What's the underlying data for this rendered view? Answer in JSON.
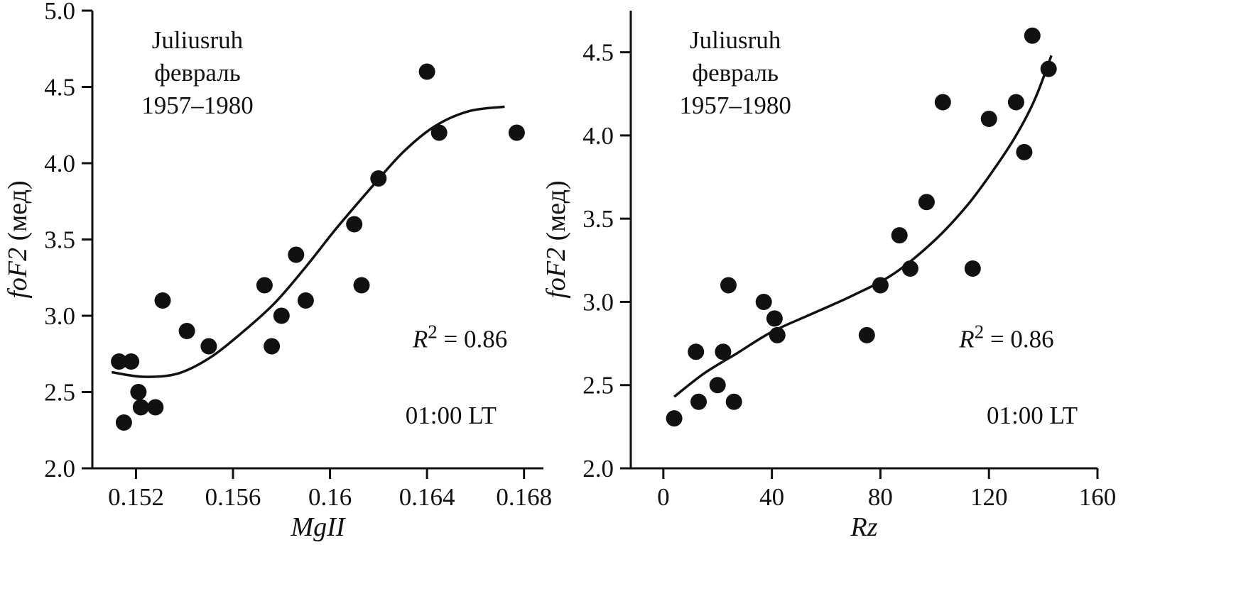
{
  "figure": {
    "background": "#ffffff",
    "ink_color": "#111111"
  },
  "chart_data": [
    {
      "id": "left",
      "type": "scatter",
      "station_lines": [
        "Juliusruh",
        "февраль",
        "1957–1980"
      ],
      "r2_label": {
        "prefix": "R",
        "sup": "2",
        "rest": " = 0.86"
      },
      "time_label": "01:00 LT",
      "xlabel": "MgII",
      "ylabel_italic": "foF2",
      "ylabel_regular": " (мед)",
      "xlim": [
        0.1502,
        0.1688
      ],
      "ylim": [
        2.0,
        5.0
      ],
      "grid": false,
      "xticks": [
        {
          "value": 0.152,
          "label": "0.152"
        },
        {
          "value": 0.156,
          "label": "0.156"
        },
        {
          "value": 0.16,
          "label": "0.16"
        },
        {
          "value": 0.164,
          "label": "0.164"
        },
        {
          "value": 0.168,
          "label": "0.168"
        }
      ],
      "yticks": [
        {
          "value": 2.0,
          "label": "2.0"
        },
        {
          "value": 2.5,
          "label": "2.5"
        },
        {
          "value": 3.0,
          "label": "3.0"
        },
        {
          "value": 3.5,
          "label": "3.5"
        },
        {
          "value": 4.0,
          "label": "4.0"
        },
        {
          "value": 4.5,
          "label": "4.5"
        },
        {
          "value": 5.0,
          "label": "5.0"
        }
      ],
      "points": [
        [
          0.1513,
          2.7
        ],
        [
          0.1518,
          2.7
        ],
        [
          0.1515,
          2.3
        ],
        [
          0.1521,
          2.5
        ],
        [
          0.1522,
          2.4
        ],
        [
          0.1528,
          2.4
        ],
        [
          0.1531,
          3.1
        ],
        [
          0.1541,
          2.9
        ],
        [
          0.155,
          2.8
        ],
        [
          0.1573,
          3.2
        ],
        [
          0.1576,
          2.8
        ],
        [
          0.158,
          3.0
        ],
        [
          0.1586,
          3.4
        ],
        [
          0.159,
          3.1
        ],
        [
          0.161,
          3.6
        ],
        [
          0.1613,
          3.2
        ],
        [
          0.162,
          3.9
        ],
        [
          0.164,
          4.6
        ],
        [
          0.1645,
          4.2
        ],
        [
          0.1677,
          4.2
        ]
      ],
      "fit_curve": [
        [
          0.151,
          2.63
        ],
        [
          0.1523,
          2.6
        ],
        [
          0.1537,
          2.62
        ],
        [
          0.155,
          2.72
        ],
        [
          0.1563,
          2.88
        ],
        [
          0.1577,
          3.08
        ],
        [
          0.159,
          3.32
        ],
        [
          0.1603,
          3.58
        ],
        [
          0.1617,
          3.84
        ],
        [
          0.163,
          4.07
        ],
        [
          0.1643,
          4.24
        ],
        [
          0.1657,
          4.34
        ],
        [
          0.1672,
          4.37
        ]
      ],
      "annotation_layout": {
        "station_fx": 0.233,
        "station_fy": 0.082,
        "r2_fx": 0.815,
        "r2_fy": 0.736,
        "lt_fx": 0.795,
        "lt_fy": 0.902
      }
    },
    {
      "id": "right",
      "type": "scatter",
      "station_lines": [
        "Juliusruh",
        "февраль",
        "1957–1980"
      ],
      "r2_label": {
        "prefix": "R",
        "sup": "2",
        "rest": " = 0.86"
      },
      "time_label": "01:00 LT",
      "xlabel": "Rz",
      "ylabel_italic": "foF2",
      "ylabel_regular": " (мед)",
      "xlim": [
        -12,
        160
      ],
      "ylim": [
        2.0,
        4.75
      ],
      "grid": false,
      "xticks": [
        {
          "value": 0,
          "label": "0"
        },
        {
          "value": 40,
          "label": "40"
        },
        {
          "value": 80,
          "label": "80"
        },
        {
          "value": 120,
          "label": "120"
        },
        {
          "value": 160,
          "label": "160"
        }
      ],
      "yticks": [
        {
          "value": 2.0,
          "label": "2.0"
        },
        {
          "value": 2.5,
          "label": "2.5"
        },
        {
          "value": 3.0,
          "label": "3.0"
        },
        {
          "value": 3.5,
          "label": "3.5"
        },
        {
          "value": 4.0,
          "label": "4.0"
        },
        {
          "value": 4.5,
          "label": "4.5"
        }
      ],
      "points": [
        [
          4,
          2.3
        ],
        [
          12,
          2.7
        ],
        [
          13,
          2.4
        ],
        [
          20,
          2.5
        ],
        [
          22,
          2.7
        ],
        [
          24,
          3.1
        ],
        [
          26,
          2.4
        ],
        [
          37,
          3.0
        ],
        [
          41,
          2.9
        ],
        [
          42,
          2.8
        ],
        [
          75,
          2.8
        ],
        [
          80,
          3.1
        ],
        [
          87,
          3.4
        ],
        [
          91,
          3.2
        ],
        [
          97,
          3.6
        ],
        [
          103,
          4.2
        ],
        [
          114,
          3.2
        ],
        [
          120,
          4.1
        ],
        [
          130,
          4.2
        ],
        [
          133,
          3.9
        ],
        [
          136,
          4.6
        ],
        [
          142,
          4.4
        ]
      ],
      "fit_curve": [
        [
          4,
          2.43
        ],
        [
          15,
          2.57
        ],
        [
          27,
          2.69
        ],
        [
          40,
          2.82
        ],
        [
          55,
          2.93
        ],
        [
          70,
          3.04
        ],
        [
          85,
          3.17
        ],
        [
          100,
          3.37
        ],
        [
          112,
          3.58
        ],
        [
          122,
          3.8
        ],
        [
          130,
          4.0
        ],
        [
          137,
          4.22
        ],
        [
          143,
          4.48
        ]
      ],
      "annotation_layout": {
        "station_fx": 0.224,
        "station_fy": 0.082,
        "r2_fx": 0.805,
        "r2_fy": 0.736,
        "lt_fx": 0.86,
        "lt_fy": 0.902
      }
    }
  ]
}
